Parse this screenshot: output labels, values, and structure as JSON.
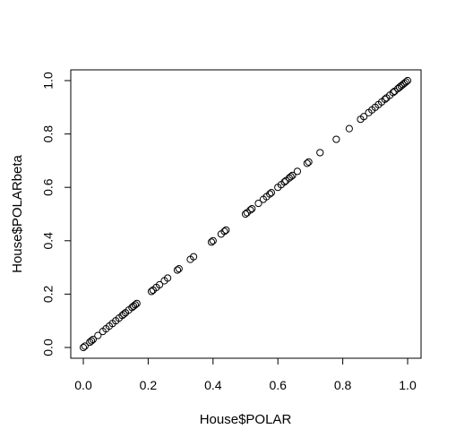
{
  "chart_data": {
    "type": "scatter",
    "title": "",
    "xlabel": "House$POLAR",
    "ylabel": "House$POLARbeta",
    "xlim": [
      -0.04,
      1.04
    ],
    "ylim": [
      -0.04,
      1.04
    ],
    "grid": false,
    "legend": "none",
    "x_ticks": [
      "0.0",
      "0.2",
      "0.4",
      "0.6",
      "0.8",
      "1.0"
    ],
    "y_ticks": [
      "0.0",
      "0.2",
      "0.4",
      "0.6",
      "0.8",
      "1.0"
    ],
    "marker": "open-circle",
    "colors": {
      "points": "#000000",
      "axes": "#000000",
      "background": "#ffffff"
    },
    "points": [
      {
        "x": 0.0,
        "y": 0.0
      },
      {
        "x": 0.005,
        "y": 0.005
      },
      {
        "x": 0.02,
        "y": 0.02
      },
      {
        "x": 0.025,
        "y": 0.025
      },
      {
        "x": 0.03,
        "y": 0.03
      },
      {
        "x": 0.045,
        "y": 0.045
      },
      {
        "x": 0.06,
        "y": 0.06
      },
      {
        "x": 0.07,
        "y": 0.07
      },
      {
        "x": 0.08,
        "y": 0.08
      },
      {
        "x": 0.09,
        "y": 0.09
      },
      {
        "x": 0.1,
        "y": 0.1
      },
      {
        "x": 0.11,
        "y": 0.11
      },
      {
        "x": 0.12,
        "y": 0.12
      },
      {
        "x": 0.125,
        "y": 0.125
      },
      {
        "x": 0.13,
        "y": 0.13
      },
      {
        "x": 0.14,
        "y": 0.14
      },
      {
        "x": 0.15,
        "y": 0.15
      },
      {
        "x": 0.155,
        "y": 0.155
      },
      {
        "x": 0.16,
        "y": 0.16
      },
      {
        "x": 0.165,
        "y": 0.165
      },
      {
        "x": 0.21,
        "y": 0.21
      },
      {
        "x": 0.215,
        "y": 0.215
      },
      {
        "x": 0.225,
        "y": 0.225
      },
      {
        "x": 0.235,
        "y": 0.235
      },
      {
        "x": 0.25,
        "y": 0.25
      },
      {
        "x": 0.26,
        "y": 0.26
      },
      {
        "x": 0.29,
        "y": 0.29
      },
      {
        "x": 0.295,
        "y": 0.295
      },
      {
        "x": 0.33,
        "y": 0.33
      },
      {
        "x": 0.34,
        "y": 0.34
      },
      {
        "x": 0.395,
        "y": 0.395
      },
      {
        "x": 0.4,
        "y": 0.4
      },
      {
        "x": 0.425,
        "y": 0.425
      },
      {
        "x": 0.435,
        "y": 0.435
      },
      {
        "x": 0.44,
        "y": 0.44
      },
      {
        "x": 0.5,
        "y": 0.5
      },
      {
        "x": 0.505,
        "y": 0.505
      },
      {
        "x": 0.515,
        "y": 0.515
      },
      {
        "x": 0.52,
        "y": 0.52
      },
      {
        "x": 0.54,
        "y": 0.54
      },
      {
        "x": 0.555,
        "y": 0.555
      },
      {
        "x": 0.565,
        "y": 0.565
      },
      {
        "x": 0.575,
        "y": 0.575
      },
      {
        "x": 0.58,
        "y": 0.58
      },
      {
        "x": 0.6,
        "y": 0.6
      },
      {
        "x": 0.61,
        "y": 0.61
      },
      {
        "x": 0.62,
        "y": 0.62
      },
      {
        "x": 0.625,
        "y": 0.625
      },
      {
        "x": 0.635,
        "y": 0.635
      },
      {
        "x": 0.64,
        "y": 0.64
      },
      {
        "x": 0.645,
        "y": 0.645
      },
      {
        "x": 0.66,
        "y": 0.66
      },
      {
        "x": 0.69,
        "y": 0.69
      },
      {
        "x": 0.695,
        "y": 0.695
      },
      {
        "x": 0.73,
        "y": 0.73
      },
      {
        "x": 0.78,
        "y": 0.78
      },
      {
        "x": 0.82,
        "y": 0.82
      },
      {
        "x": 0.855,
        "y": 0.855
      },
      {
        "x": 0.865,
        "y": 0.865
      },
      {
        "x": 0.88,
        "y": 0.88
      },
      {
        "x": 0.89,
        "y": 0.89
      },
      {
        "x": 0.9,
        "y": 0.9
      },
      {
        "x": 0.91,
        "y": 0.91
      },
      {
        "x": 0.92,
        "y": 0.92
      },
      {
        "x": 0.93,
        "y": 0.93
      },
      {
        "x": 0.935,
        "y": 0.935
      },
      {
        "x": 0.945,
        "y": 0.945
      },
      {
        "x": 0.955,
        "y": 0.955
      },
      {
        "x": 0.96,
        "y": 0.96
      },
      {
        "x": 0.97,
        "y": 0.97
      },
      {
        "x": 0.975,
        "y": 0.975
      },
      {
        "x": 0.98,
        "y": 0.98
      },
      {
        "x": 0.985,
        "y": 0.985
      },
      {
        "x": 0.99,
        "y": 0.99
      },
      {
        "x": 0.995,
        "y": 0.995
      },
      {
        "x": 1.0,
        "y": 1.0
      }
    ]
  }
}
